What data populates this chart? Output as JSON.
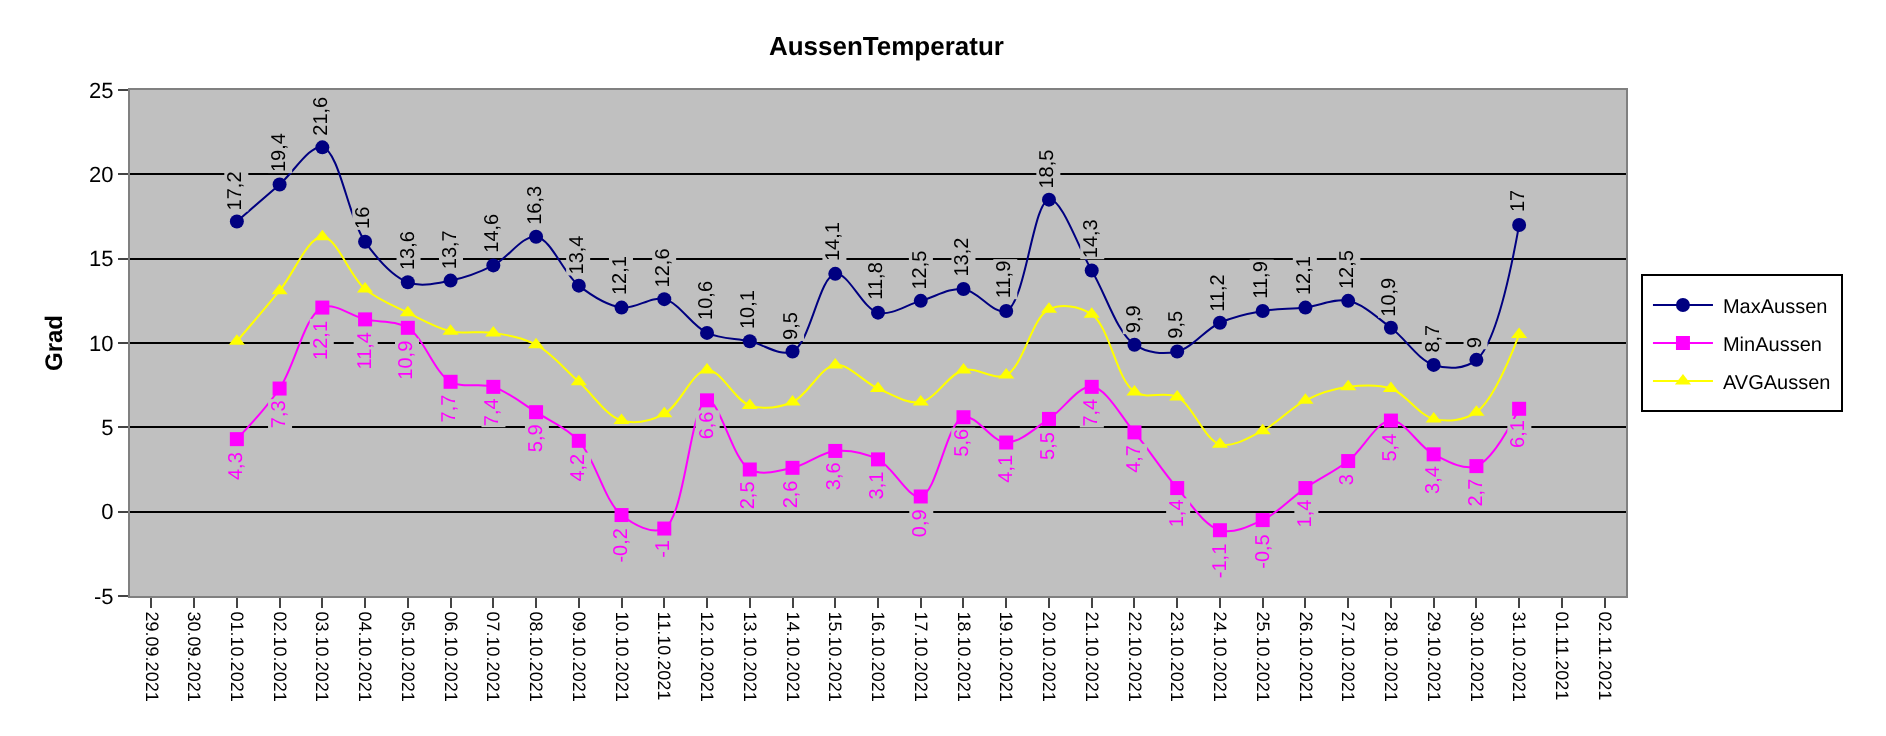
{
  "chart_data": {
    "type": "line",
    "title": "AussenTemperatur",
    "ylabel": "Grad",
    "categories": [
      "29.09.2021",
      "30.09.2021",
      "01.10.2021",
      "02.10.2021",
      "03.10.2021",
      "04.10.2021",
      "05.10.2021",
      "06.10.2021",
      "07.10.2021",
      "08.10.2021",
      "09.10.2021",
      "10.10.2021",
      "11.10.2021",
      "12.10.2021",
      "13.10.2021",
      "14.10.2021",
      "15.10.2021",
      "16.10.2021",
      "17.10.2021",
      "18.10.2021",
      "19.10.2021",
      "20.10.2021",
      "21.10.2021",
      "22.10.2021",
      "23.10.2021",
      "24.10.2021",
      "25.10.2021",
      "26.10.2021",
      "27.10.2021",
      "28.10.2021",
      "29.10.2021",
      "30.10.2021",
      "31.10.2021",
      "01.11.2021",
      "02.11.2021"
    ],
    "series": [
      {
        "name": "MaxAussen",
        "color": "#000080",
        "marker": "circle",
        "values": [
          null,
          null,
          17.2,
          19.4,
          21.6,
          16,
          13.6,
          13.7,
          14.6,
          16.3,
          13.4,
          12.1,
          12.6,
          10.6,
          10.1,
          9.5,
          14.1,
          11.8,
          12.5,
          13.2,
          11.9,
          18.5,
          14.3,
          9.9,
          9.5,
          11.2,
          11.9,
          12.1,
          12.5,
          10.9,
          8.7,
          9,
          17,
          null,
          null
        ],
        "value_labels": [
          null,
          null,
          "17,2",
          "19,4",
          "21,6",
          "16",
          "13,6",
          "13,7",
          "14,6",
          "16,3",
          "13,4",
          "12,1",
          "12,6",
          "10,6",
          "10,1",
          "9,5",
          "14,1",
          "11,8",
          "12,5",
          "13,2",
          "11,9",
          "18,5",
          "14,3",
          "9,9",
          "9,5",
          "11,2",
          "11,9",
          "12,1",
          "12,5",
          "10,9",
          "8,7",
          "9",
          "17",
          null,
          null
        ]
      },
      {
        "name": "MinAussen",
        "color": "#ff00ff",
        "marker": "square",
        "values": [
          null,
          null,
          4.3,
          7.3,
          12.1,
          11.4,
          10.9,
          7.7,
          7.4,
          5.9,
          4.2,
          -0.2,
          -1,
          6.6,
          2.5,
          2.6,
          3.6,
          3.1,
          0.9,
          5.6,
          4.1,
          5.5,
          7.4,
          4.7,
          1.4,
          -1.1,
          -0.5,
          1.4,
          3,
          5.4,
          3.4,
          2.7,
          6.1,
          null,
          null
        ],
        "value_labels": [
          null,
          null,
          "4,3",
          "7,3",
          "12,1",
          "11,4",
          "10,9",
          "7,7",
          "7,4",
          "5,9",
          "4,2",
          "-0,2",
          "-1",
          "6,6",
          "2,5",
          "2,6",
          "3,6",
          "3,1",
          "0,9",
          "5,6",
          "4,1",
          "5,5",
          "7,4",
          "4,7",
          "1,4",
          "-1,1",
          "-0,5",
          "1,4",
          "3",
          "5,4",
          "3,4",
          "2,7",
          "6,1",
          null,
          null
        ]
      },
      {
        "name": "AVGAussen",
        "color": "#ffff00",
        "marker": "triangle",
        "values": [
          null,
          null,
          10.1,
          13.1,
          16.3,
          13.2,
          11.8,
          10.7,
          10.6,
          9.9,
          7.7,
          5.4,
          5.8,
          8.4,
          6.3,
          6.5,
          8.7,
          7.3,
          6.5,
          8.4,
          8.1,
          12.0,
          11.7,
          7.1,
          6.8,
          4.0,
          4.8,
          6.6,
          7.4,
          7.3,
          5.5,
          5.9,
          10.5,
          null,
          null
        ]
      }
    ],
    "ylim": [
      -5,
      25
    ],
    "yticks": [
      -5,
      0,
      5,
      10,
      15,
      20,
      25
    ],
    "grid": "y",
    "legend": "right"
  }
}
